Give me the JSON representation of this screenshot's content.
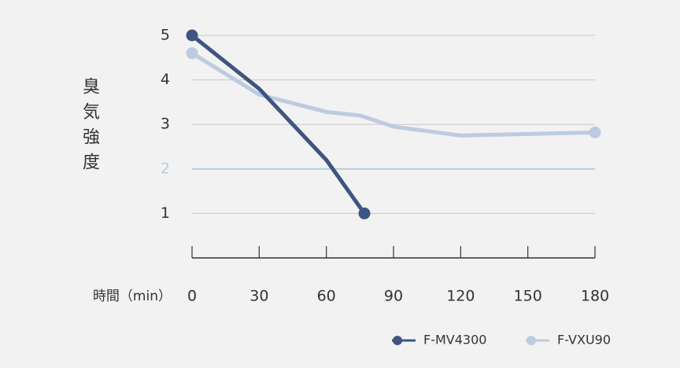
{
  "chart_data": {
    "type": "line",
    "y_label": "臭気強度",
    "x_label": "時間（min）",
    "xlim": [
      0,
      180
    ],
    "xticks": [
      0,
      30,
      60,
      90,
      120,
      150,
      180
    ],
    "ylim": [
      0,
      5
    ],
    "yticks": [
      1,
      2,
      3,
      4,
      5
    ],
    "grid": true,
    "highlight_gridline": {
      "value": 2,
      "color": "#b8c9de"
    },
    "legend": "bottom-right",
    "series": [
      {
        "name": "F-MV4300",
        "color": "#3e5582",
        "x": [
          0,
          30,
          60,
          77
        ],
        "values": [
          5,
          3.8,
          2.2,
          1
        ]
      },
      {
        "name": "F-VXU90",
        "color": "#bccbe0",
        "x": [
          0,
          30,
          60,
          75,
          90,
          120,
          180
        ],
        "values": [
          4.6,
          3.67,
          3.28,
          3.2,
          2.95,
          2.75,
          2.82
        ]
      }
    ]
  }
}
